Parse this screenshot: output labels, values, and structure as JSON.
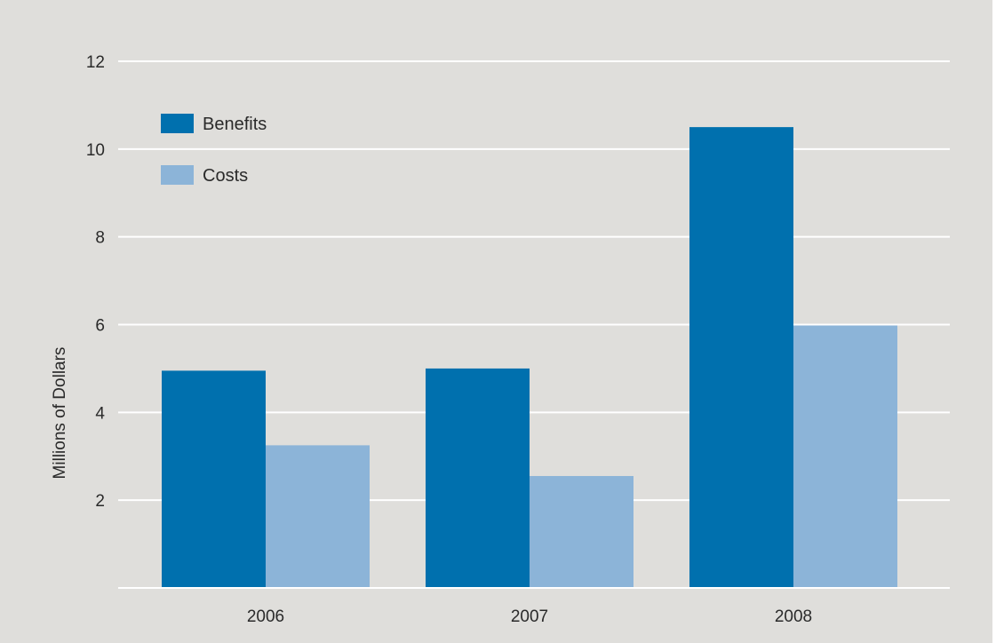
{
  "chart_data": {
    "type": "bar",
    "categories": [
      "2006",
      "2007",
      "2008"
    ],
    "series": [
      {
        "name": "Benefits",
        "values": [
          4.95,
          5.0,
          10.5
        ],
        "color": "#0070ae"
      },
      {
        "name": "Costs",
        "values": [
          3.25,
          2.55,
          5.98
        ],
        "color": "#8cb4d8"
      }
    ],
    "ylabel": "Millions of Dollars",
    "xlabel": "",
    "ylim": [
      0,
      12
    ],
    "yticks": [
      2,
      4,
      6,
      8,
      10,
      12
    ],
    "grid": true,
    "legend_position": "top-left",
    "colors": {
      "background": "#dfdedb",
      "gridline": "#ffffff",
      "text": "#2a2a2a"
    }
  }
}
